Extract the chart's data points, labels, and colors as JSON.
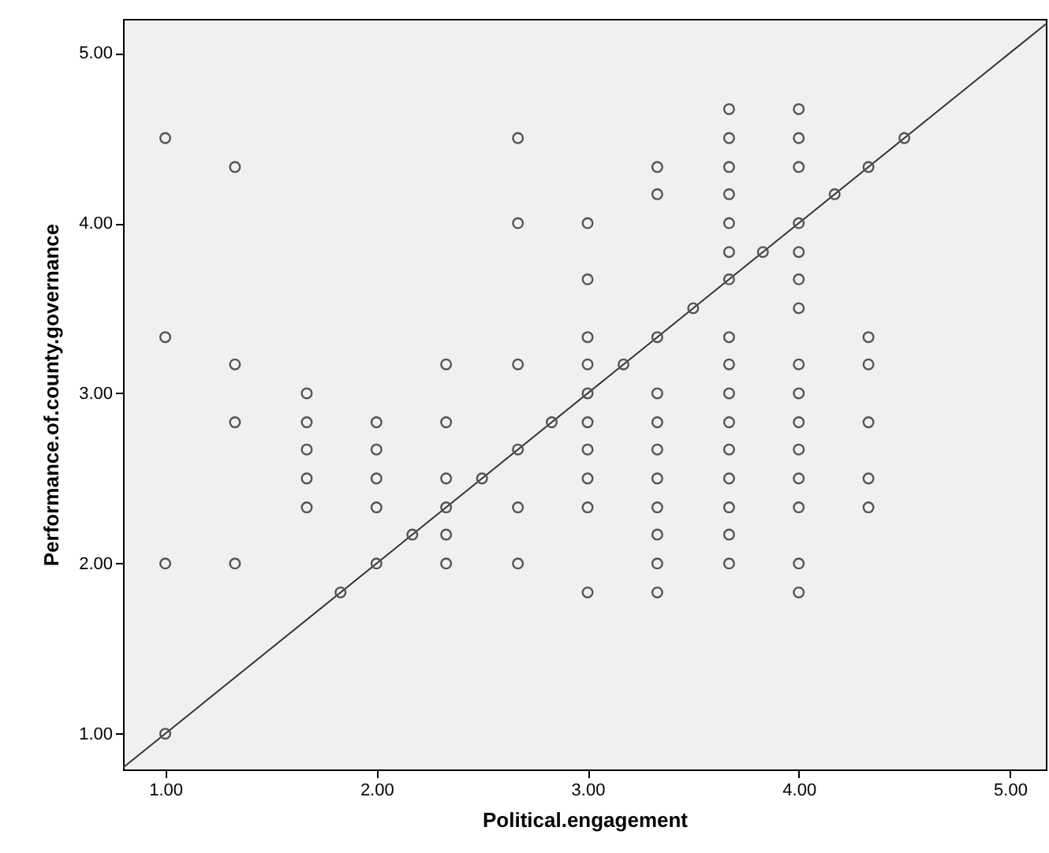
{
  "chart_data": {
    "type": "scatter",
    "xlabel": "Political.engagement",
    "ylabel": "Performance.of.county.governance",
    "xlim": [
      0.8,
      5.17
    ],
    "ylim": [
      0.79,
      5.2
    ],
    "xticks": [
      {
        "value": 1,
        "label": "1.00"
      },
      {
        "value": 2,
        "label": "2.00"
      },
      {
        "value": 3,
        "label": "3.00"
      },
      {
        "value": 4,
        "label": "4.00"
      },
      {
        "value": 5,
        "label": "5.00"
      }
    ],
    "yticks": [
      {
        "value": 1,
        "label": "1.00"
      },
      {
        "value": 2,
        "label": "2.00"
      },
      {
        "value": 3,
        "label": "3.00"
      },
      {
        "value": 4,
        "label": "4.00"
      },
      {
        "value": 5,
        "label": "5.00"
      }
    ],
    "marker": "circle",
    "series": [
      {
        "color": "#555555",
        "x": [
          1,
          1,
          1,
          1,
          1.33,
          1.33,
          1.33,
          1.33,
          1.67,
          1.67,
          1.67,
          1.67,
          1.67,
          1.83,
          2,
          2,
          2,
          2,
          2,
          2.17,
          2.33,
          2.33,
          2.33,
          2.33,
          2.33,
          2.33,
          2.5,
          2.67,
          2.67,
          2.67,
          2.67,
          2.67,
          2.67,
          2.83,
          3,
          3,
          3,
          3,
          3,
          3,
          3,
          3,
          3,
          3,
          3.17,
          3.33,
          3.33,
          3.33,
          3.33,
          3.33,
          3.33,
          3.33,
          3.33,
          3.33,
          3.33,
          3.33,
          3.5,
          3.67,
          3.67,
          3.67,
          3.67,
          3.67,
          3.67,
          3.67,
          3.67,
          3.67,
          3.67,
          3.67,
          3.67,
          3.67,
          3.67,
          3.67,
          3.67,
          3.83,
          4,
          4,
          4,
          4,
          4,
          4,
          4,
          4,
          4,
          4,
          4,
          4,
          4,
          4,
          4,
          4.17,
          4.33,
          4.33,
          4.33,
          4.33,
          4.33,
          4.33,
          4.5
        ],
        "values": [
          4.5,
          3.33,
          2,
          1,
          4.33,
          3.17,
          2.83,
          2,
          3,
          2.83,
          2.67,
          2.5,
          2.33,
          1.83,
          2.83,
          2.67,
          2.5,
          2.33,
          2,
          2.17,
          3.17,
          2.83,
          2.5,
          2.33,
          2.17,
          2,
          2.5,
          4.5,
          4,
          3.17,
          2.67,
          2.33,
          2,
          2.83,
          4,
          3.67,
          3.33,
          3.17,
          3,
          2.83,
          2.67,
          2.5,
          2.33,
          1.83,
          3.17,
          4.33,
          4.17,
          3.33,
          3,
          2.83,
          2.67,
          2.5,
          2.33,
          2.17,
          2,
          1.83,
          3.5,
          4.67,
          4.5,
          4.33,
          4.17,
          4,
          3.83,
          3.67,
          3.33,
          3.17,
          3,
          2.83,
          2.67,
          2.5,
          2.33,
          2.17,
          2,
          3.83,
          4.67,
          4.5,
          4.33,
          4,
          3.83,
          3.67,
          3.5,
          3.17,
          3,
          2.83,
          2.67,
          2.5,
          2.33,
          2,
          1.83,
          4.17,
          4.33,
          3.33,
          3.17,
          2.83,
          2.5,
          2.33,
          4.5
        ]
      },
      {
        "type": "line",
        "marker": "none",
        "color": "#333333",
        "x": [
          0.8,
          5.17
        ],
        "values": [
          0.8,
          5.17
        ]
      }
    ]
  }
}
